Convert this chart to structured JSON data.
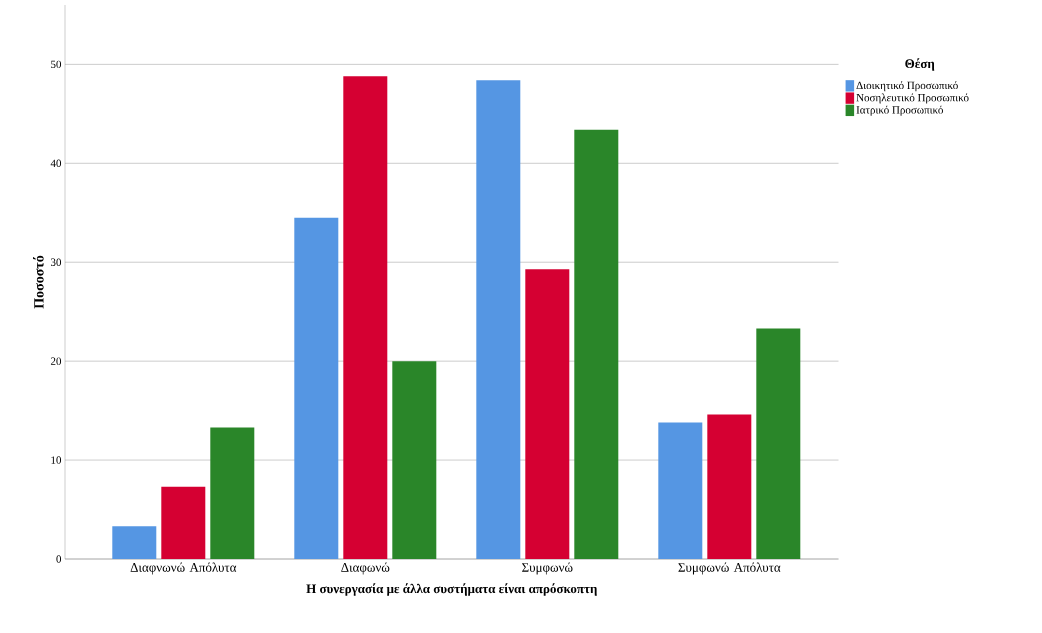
{
  "chart_data": {
    "type": "bar",
    "xlabel": "Η συνεργασία με άλλα συστήματα είναι απρόσκοπτη",
    "ylabel": "Ποσοστό",
    "legend_title": "Θέση",
    "categories": [
      "Διαφνωνώ Απόλυτα",
      "Διαφωνώ",
      "Συμφωνώ",
      "Συμφωνώ Απόλυτα"
    ],
    "series": [
      {
        "name": "Διοικητικό Προσωπικό",
        "color": "#5596e3",
        "values": [
          3.3,
          34.5,
          48.4,
          13.8
        ]
      },
      {
        "name": "Νοσηλευτικό Προσωπικό",
        "color": "#d50032",
        "values": [
          7.3,
          48.8,
          29.3,
          14.6
        ]
      },
      {
        "name": "Ιατρικό Προσωπικό",
        "color": "#2a8629",
        "values": [
          13.3,
          20.0,
          43.4,
          23.3
        ]
      }
    ],
    "ylim": [
      0,
      56
    ],
    "yticks": [
      0,
      10,
      20,
      30,
      40,
      50
    ],
    "grid": "y",
    "legend": "top right"
  }
}
